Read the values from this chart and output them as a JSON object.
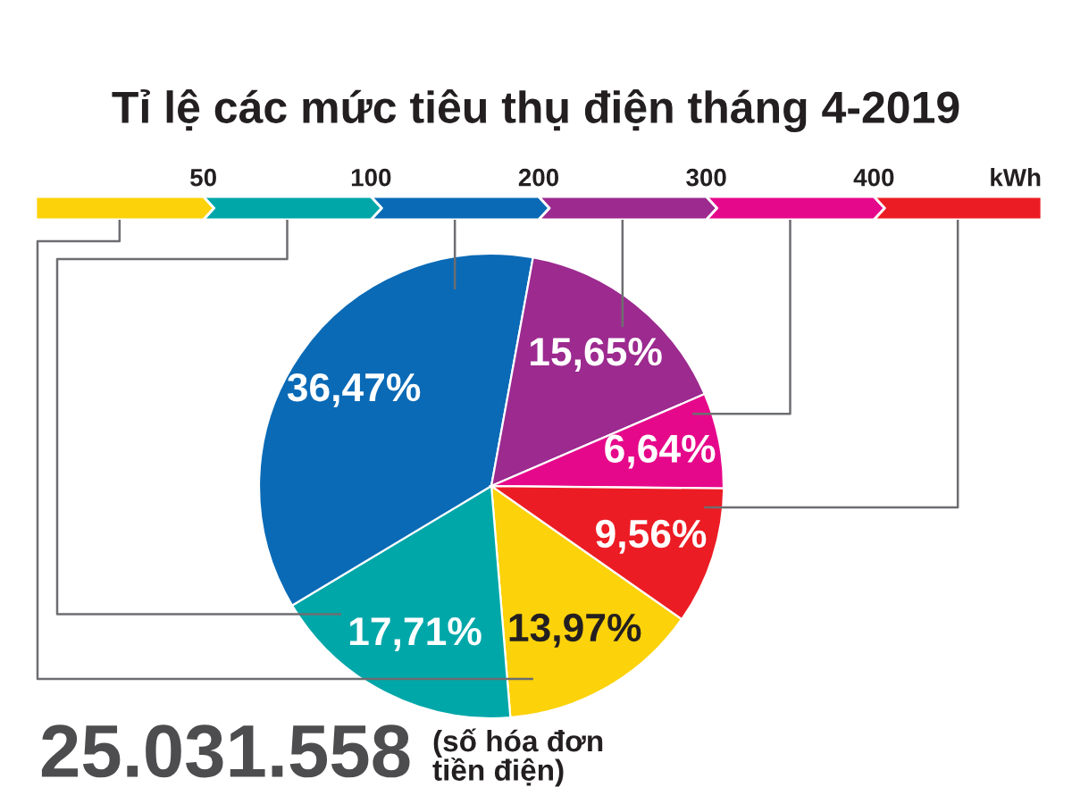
{
  "chart_data": {
    "type": "pie",
    "title": "Tỉ lệ các mức tiêu thụ điện tháng 4-2019",
    "categories": [
      null,
      null,
      null,
      null,
      null,
      null
    ],
    "values": [
      13.97,
      17.71,
      36.47,
      15.65,
      6.64,
      9.56
    ],
    "colors": [
      "#fcd20a",
      "#00a7a9",
      "#0a6ab6",
      "#9c2a8f",
      "#e6088b",
      "#ec1c24"
    ],
    "value_labels": [
      "13,97%",
      "17,71%",
      "36,47%",
      "15,65%",
      "6,64%",
      "9,56%"
    ],
    "annotations": [
      "50",
      "100",
      "200",
      "300",
      "400",
      "kWh",
      "25.031.558",
      "(số hóa đơn\ntiền điện)"
    ]
  }
}
